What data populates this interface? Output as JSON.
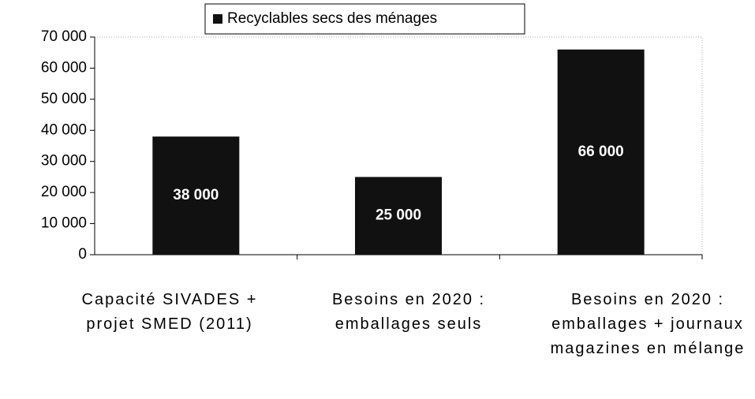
{
  "chart_data": {
    "type": "bar",
    "categories": [
      "Capacité SIVADES + projet SMED (2011)",
      "Besoins en 2020 : emballages seuls",
      "Besoins en 2020 : emballages + journaux magazines en mélange"
    ],
    "series": [
      {
        "name": "Recyclables secs des ménages",
        "color": "#111111",
        "values": [
          38000,
          25000,
          66000
        ],
        "value_labels": [
          "38 000",
          "25 000",
          "66 000"
        ]
      }
    ],
    "ylim": [
      0,
      70000
    ],
    "yticks": [
      {
        "value": 0,
        "label": "0"
      },
      {
        "value": 10000,
        "label": "10 000"
      },
      {
        "value": 20000,
        "label": "20 000"
      },
      {
        "value": 30000,
        "label": "30 000"
      },
      {
        "value": 40000,
        "label": "40 000"
      },
      {
        "value": 50000,
        "label": "50 000"
      },
      {
        "value": 60000,
        "label": "60 000"
      },
      {
        "value": 70000,
        "label": "70 000"
      }
    ],
    "legend": "top"
  }
}
